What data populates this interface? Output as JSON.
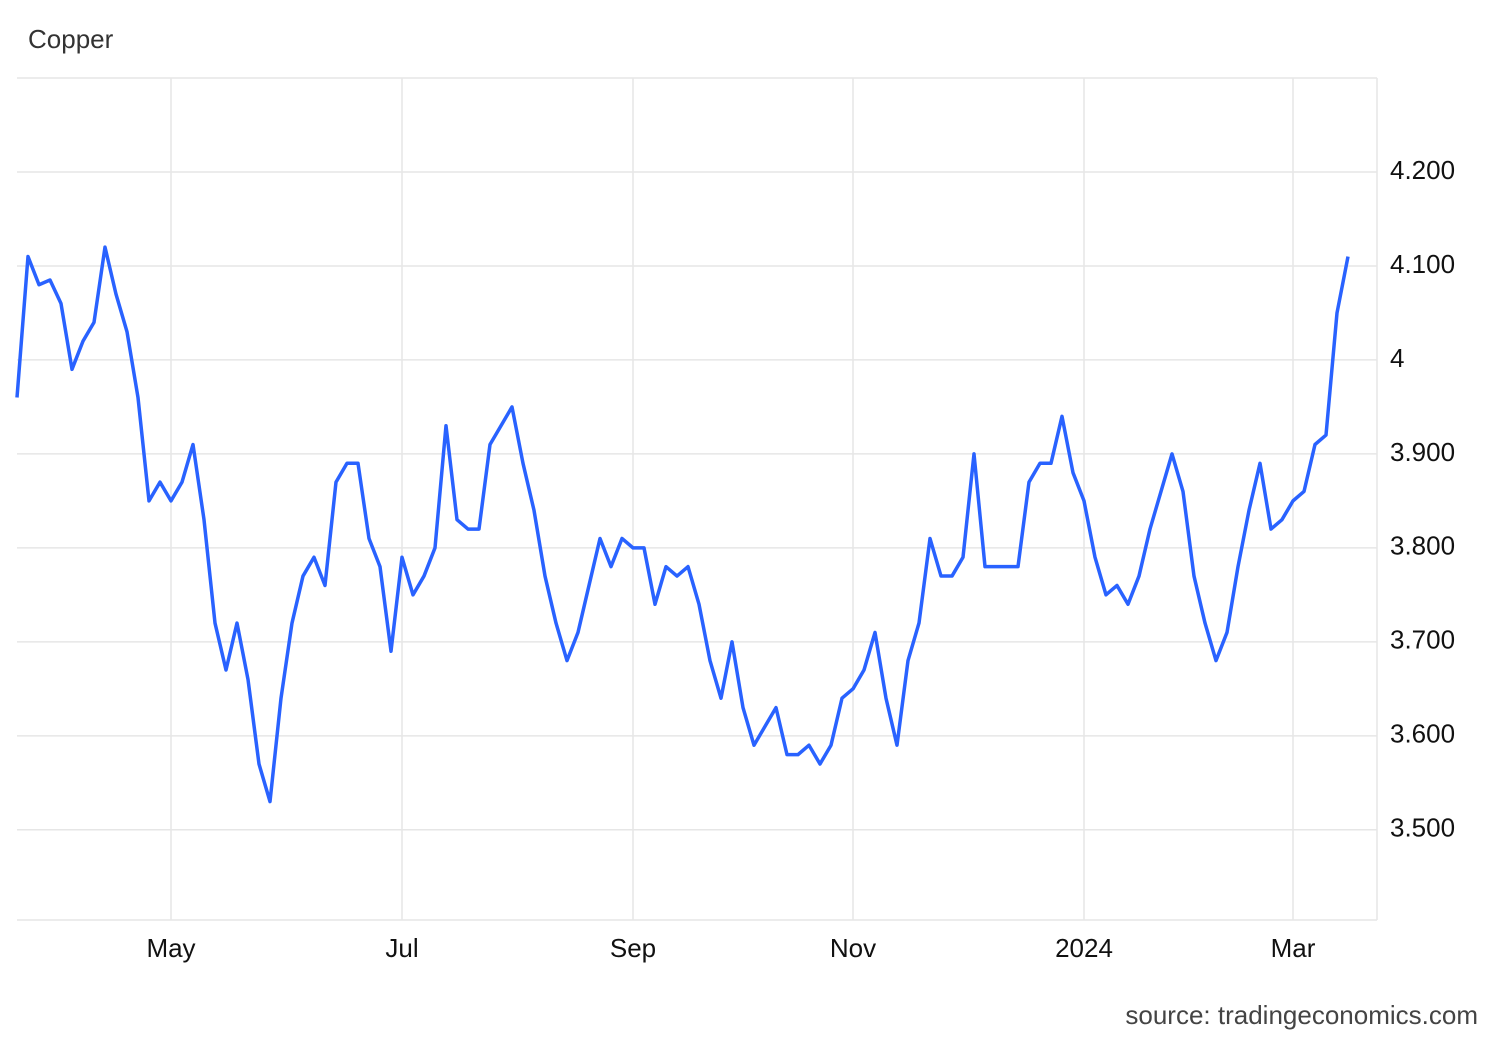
{
  "chart_data": {
    "type": "line",
    "title": "Copper",
    "source": "source: tradingeconomics.com",
    "color": "#2962ff",
    "grid": true,
    "categories": [
      null,
      null,
      null,
      null,
      null,
      null,
      null,
      null,
      null,
      null,
      null,
      null,
      null,
      null,
      "May",
      null,
      null,
      null,
      null,
      null,
      null,
      null,
      null,
      null,
      null,
      null,
      null,
      null,
      null,
      null,
      null,
      null,
      null,
      null,
      null,
      "Jul",
      null,
      null,
      null,
      null,
      null,
      null,
      null,
      null,
      null,
      null,
      null,
      null,
      null,
      null,
      null,
      null,
      null,
      null,
      null,
      null,
      "Sep",
      null,
      null,
      null,
      null,
      null,
      null,
      null,
      null,
      null,
      null,
      null,
      null,
      null,
      null,
      null,
      null,
      null,
      null,
      null,
      "Nov",
      null,
      null,
      null,
      null,
      null,
      null,
      null,
      null,
      null,
      null,
      null,
      null,
      null,
      null,
      null,
      null,
      null,
      null,
      null,
      null,
      "2024",
      null,
      null,
      null,
      null,
      null,
      null,
      null,
      null,
      null,
      null,
      null,
      null,
      null,
      null,
      null,
      null,
      null,
      null,
      "Mar",
      null,
      null,
      null,
      null,
      null
    ],
    "values": [
      3.96,
      4.11,
      4.08,
      4.085,
      4.06,
      3.99,
      4.02,
      4.04,
      4.12,
      4.07,
      4.03,
      3.96,
      3.85,
      3.87,
      3.85,
      3.87,
      3.91,
      3.83,
      3.72,
      3.67,
      3.72,
      3.66,
      3.57,
      3.53,
      3.64,
      3.72,
      3.77,
      3.79,
      3.76,
      3.87,
      3.89,
      3.89,
      3.81,
      3.78,
      3.69,
      3.79,
      3.75,
      3.77,
      3.8,
      3.93,
      3.83,
      3.82,
      3.82,
      3.91,
      3.93,
      3.95,
      3.89,
      3.84,
      3.77,
      3.72,
      3.68,
      3.71,
      3.76,
      3.81,
      3.78,
      3.81,
      3.8,
      3.8,
      3.74,
      3.78,
      3.77,
      3.78,
      3.74,
      3.68,
      3.64,
      3.7,
      3.63,
      3.59,
      3.61,
      3.63,
      3.58,
      3.58,
      3.59,
      3.57,
      3.59,
      3.64,
      3.65,
      3.67,
      3.71,
      3.64,
      3.59,
      3.68,
      3.72,
      3.81,
      3.77,
      3.77,
      3.79,
      3.9,
      3.78,
      3.78,
      3.78,
      3.78,
      3.87,
      3.89,
      3.89,
      3.94,
      3.88,
      3.85,
      3.79,
      3.75,
      3.76,
      3.74,
      3.77,
      3.82,
      3.86,
      3.9,
      3.86,
      3.77,
      3.72,
      3.68,
      3.71,
      3.78,
      3.84,
      3.89,
      3.82,
      3.83,
      3.85,
      3.86,
      3.91,
      3.92,
      4.05,
      4.11
    ],
    "ylim": [
      3.404,
      4.3
    ],
    "yticks": [
      {
        "value": 3.5,
        "label": "3.500"
      },
      {
        "value": 3.6,
        "label": "3.600"
      },
      {
        "value": 3.7,
        "label": "3.700"
      },
      {
        "value": 3.8,
        "label": "3.800"
      },
      {
        "value": 3.9,
        "label": "3.900"
      },
      4,
      {
        "value": 4.1,
        "label": "4.100"
      },
      {
        "value": 4.2,
        "label": "4.200"
      }
    ]
  }
}
